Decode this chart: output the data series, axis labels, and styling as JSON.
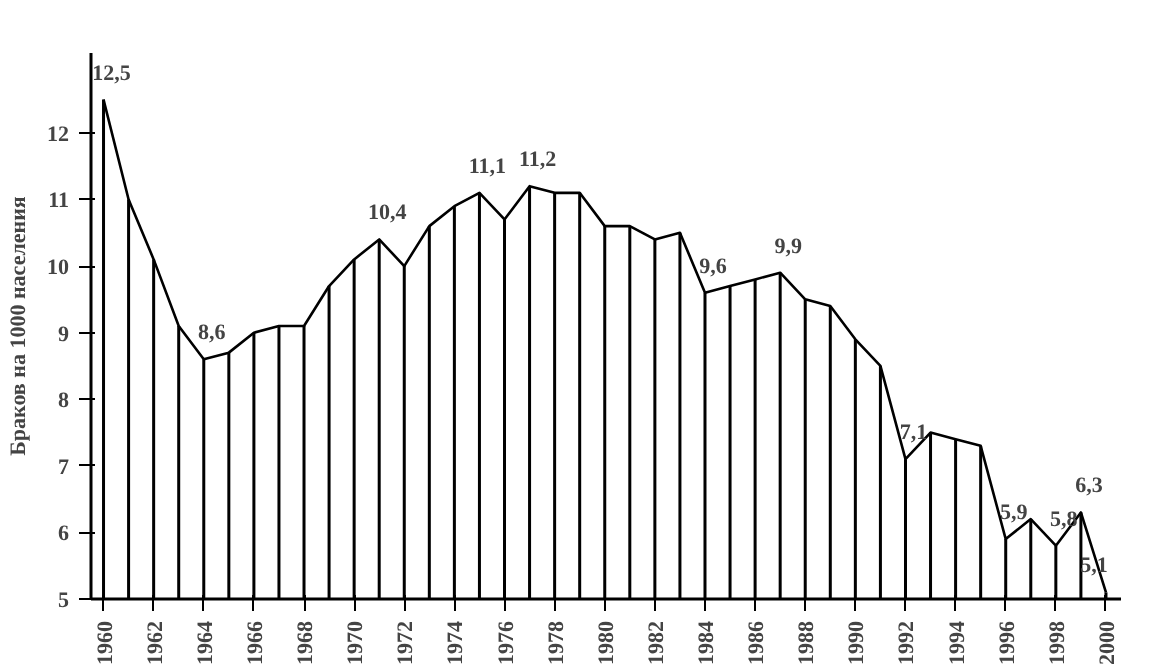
{
  "chart_data": {
    "type": "line",
    "ylabel": "Браков на 1000 населения",
    "x": [
      1960,
      1961,
      1962,
      1963,
      1964,
      1965,
      1966,
      1967,
      1968,
      1969,
      1970,
      1971,
      1972,
      1973,
      1974,
      1975,
      1976,
      1977,
      1978,
      1979,
      1980,
      1981,
      1982,
      1983,
      1984,
      1985,
      1986,
      1987,
      1988,
      1989,
      1990,
      1991,
      1992,
      1993,
      1994,
      1995,
      1996,
      1997,
      1998,
      1999,
      2000
    ],
    "series": [
      {
        "color": "#000000",
        "values": [
          12.5,
          11.0,
          10.1,
          9.1,
          8.6,
          8.7,
          9.0,
          9.1,
          9.1,
          9.7,
          10.1,
          10.4,
          10.0,
          10.6,
          10.9,
          11.1,
          10.7,
          11.2,
          11.1,
          11.1,
          10.6,
          10.6,
          10.4,
          10.5,
          9.6,
          9.7,
          9.8,
          9.9,
          9.5,
          9.4,
          8.9,
          8.5,
          7.1,
          7.5,
          7.4,
          7.3,
          5.9,
          6.2,
          5.8,
          6.3,
          5.1
        ],
        "value_labels": [
          "12,5",
          null,
          null,
          null,
          "8,6",
          null,
          null,
          null,
          null,
          null,
          null,
          "10,4",
          null,
          null,
          null,
          "11,1",
          null,
          "11,2",
          null,
          null,
          null,
          null,
          null,
          null,
          "9,6",
          null,
          null,
          "9,9",
          null,
          null,
          null,
          null,
          "7,1",
          null,
          null,
          null,
          "5,9",
          null,
          "5,8",
          "6,3",
          "5,1"
        ]
      },
      {
        "type": "bar",
        "color": "#000000",
        "values": [
          12.5,
          11.0,
          10.1,
          9.1,
          8.6,
          8.7,
          9.0,
          9.1,
          9.1,
          9.7,
          10.1,
          10.4,
          10.0,
          10.6,
          10.9,
          11.1,
          10.7,
          11.2,
          11.1,
          11.1,
          10.6,
          10.6,
          10.4,
          10.5,
          9.6,
          9.7,
          9.8,
          9.9,
          9.5,
          9.4,
          8.9,
          8.5,
          7.1,
          7.5,
          7.4,
          7.3,
          5.9,
          6.2,
          5.8,
          6.3,
          5.1
        ]
      }
    ],
    "xlim": [
      1959.5,
      2000.6
    ],
    "xticks": [
      1960,
      1962,
      1964,
      1966,
      1968,
      1970,
      1972,
      1974,
      1976,
      1978,
      1980,
      1982,
      1984,
      1986,
      1988,
      1990,
      1992,
      1994,
      1996,
      1998,
      2000
    ],
    "ylim": [
      5,
      13.2
    ],
    "yticks": [
      5,
      6,
      7,
      8,
      9,
      10,
      11,
      12
    ],
    "grid": false
  }
}
